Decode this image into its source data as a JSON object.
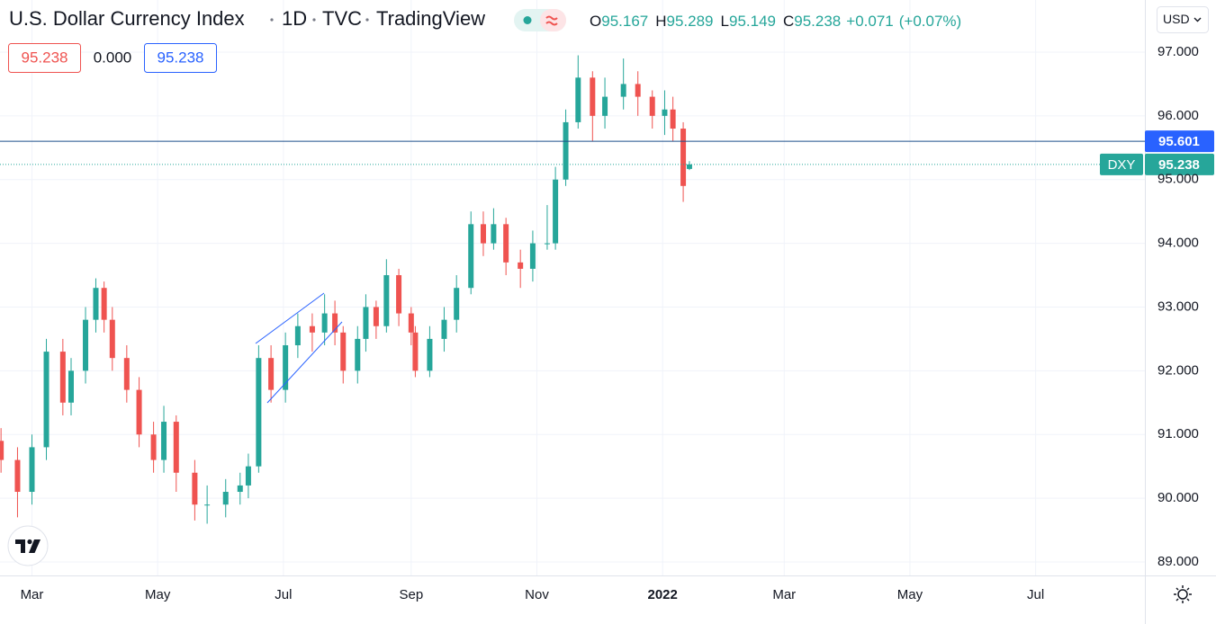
{
  "header": {
    "title": "U.S. Dollar Currency Index",
    "interval": "1D",
    "exchange": "TVC",
    "source": "TradingView",
    "ohlc": [
      {
        "label": "O",
        "value": 95.167
      },
      {
        "label": "H",
        "value": 95.289
      },
      {
        "label": "L",
        "value": 95.149
      },
      {
        "label": "C",
        "value": 95.238
      }
    ],
    "change": "+0.071",
    "change_pct": "(+0.07%)",
    "legend_row": [
      "95.238",
      "0.000",
      "95.238"
    ],
    "currency": "USD"
  },
  "chart_data": {
    "type": "candlestick",
    "symbol": "DXY",
    "up_color": "#26a69a",
    "down_color": "#ef5350",
    "grid": true,
    "x": [
      -15,
      -7,
      0,
      7,
      15,
      19,
      26,
      31,
      35,
      39,
      46,
      52,
      59,
      64,
      70,
      79,
      85,
      94,
      101,
      105,
      110,
      116,
      123,
      129,
      136,
      142,
      147,
      151,
      158,
      162,
      167,
      172,
      178,
      184,
      186,
      193,
      200,
      206,
      213,
      219,
      224,
      230,
      237,
      243,
      250,
      254,
      259,
      265,
      272,
      278,
      287,
      294,
      301,
      307,
      311,
      316,
      319
    ],
    "open": [
      90.9,
      90.6,
      90.1,
      90.8,
      92.3,
      91.5,
      92.0,
      92.8,
      93.3,
      92.8,
      92.2,
      91.7,
      91.0,
      90.6,
      91.2,
      90.4,
      89.9,
      89.9,
      90.1,
      90.2,
      90.5,
      92.2,
      91.7,
      92.4,
      92.7,
      92.6,
      92.9,
      92.6,
      92.0,
      92.5,
      93.0,
      92.7,
      93.5,
      92.9,
      92.6,
      92.0,
      92.5,
      92.8,
      93.3,
      94.3,
      94.0,
      94.3,
      93.7,
      93.6,
      94.0,
      94.0,
      95.0,
      95.9,
      96.6,
      96.0,
      96.3,
      96.5,
      96.3,
      96.0,
      96.1,
      95.8,
      95.167
    ],
    "high": [
      91.1,
      90.8,
      91.0,
      92.5,
      92.5,
      92.2,
      93.0,
      93.45,
      93.4,
      93.0,
      92.4,
      91.9,
      91.2,
      91.45,
      91.3,
      90.6,
      90.2,
      90.3,
      90.4,
      90.7,
      92.4,
      92.4,
      92.6,
      92.9,
      92.9,
      93.2,
      93.1,
      92.7,
      92.7,
      93.2,
      93.1,
      93.75,
      93.6,
      93.0,
      92.7,
      92.7,
      93.0,
      93.5,
      94.5,
      94.5,
      94.55,
      94.4,
      93.9,
      94.2,
      94.6,
      95.2,
      96.1,
      96.95,
      96.7,
      96.6,
      96.9,
      96.7,
      96.4,
      96.4,
      96.3,
      95.9,
      95.289
    ],
    "low": [
      90.4,
      89.7,
      89.9,
      90.6,
      91.3,
      91.3,
      91.8,
      92.6,
      92.6,
      92.0,
      91.5,
      90.8,
      90.4,
      90.4,
      90.1,
      89.65,
      89.6,
      89.7,
      89.9,
      90.0,
      90.4,
      91.5,
      91.5,
      92.2,
      92.3,
      92.4,
      92.4,
      91.8,
      91.8,
      92.3,
      92.5,
      92.6,
      92.7,
      92.4,
      91.9,
      91.9,
      92.3,
      92.6,
      93.2,
      93.8,
      93.9,
      93.5,
      93.3,
      93.4,
      93.9,
      93.9,
      94.9,
      95.8,
      95.6,
      95.8,
      96.1,
      96.0,
      95.8,
      95.7,
      95.6,
      94.65,
      95.149
    ],
    "close": [
      90.6,
      90.1,
      90.8,
      92.3,
      91.5,
      92.0,
      92.8,
      93.3,
      92.8,
      92.2,
      91.7,
      91.0,
      90.6,
      91.2,
      90.4,
      89.9,
      89.9,
      90.1,
      90.2,
      90.5,
      92.2,
      91.7,
      92.4,
      92.7,
      92.6,
      92.9,
      92.6,
      92.0,
      92.5,
      93.0,
      92.7,
      93.5,
      92.9,
      92.6,
      92.0,
      92.5,
      92.8,
      93.3,
      94.3,
      94.0,
      94.3,
      93.7,
      93.6,
      94.0,
      94.0,
      95.0,
      95.9,
      96.6,
      96.0,
      96.3,
      96.5,
      96.3,
      96.0,
      96.1,
      95.8,
      94.9,
      95.238
    ],
    "hline": {
      "value": 95.601,
      "color": "#2962ff"
    },
    "xlim": [
      -15.5,
      540
    ],
    "xticks": [
      {
        "value": 0,
        "label": "Mar"
      },
      {
        "value": 61,
        "label": "May"
      },
      {
        "value": 122,
        "label": "Jul"
      },
      {
        "value": 184,
        "label": "Sep"
      },
      {
        "value": 245,
        "label": "Nov"
      },
      {
        "value": 306,
        "label": "2022"
      },
      {
        "value": 365,
        "label": "Mar"
      },
      {
        "value": 426,
        "label": "May"
      },
      {
        "value": 487,
        "label": "Jul"
      }
    ],
    "ylim": [
      88.788,
      97.818
    ],
    "yticks": [
      {
        "value": 89,
        "label": "89.000"
      },
      {
        "value": 90,
        "label": "90.000"
      },
      {
        "value": 91,
        "label": "91.000"
      },
      {
        "value": 92,
        "label": "92.000"
      },
      {
        "value": 93,
        "label": "93.000"
      },
      {
        "value": 94,
        "label": "94.000"
      },
      {
        "value": 95,
        "label": "95.000"
      },
      {
        "value": 96,
        "label": "96.000"
      },
      {
        "value": 97,
        "label": "97.000"
      }
    ]
  }
}
